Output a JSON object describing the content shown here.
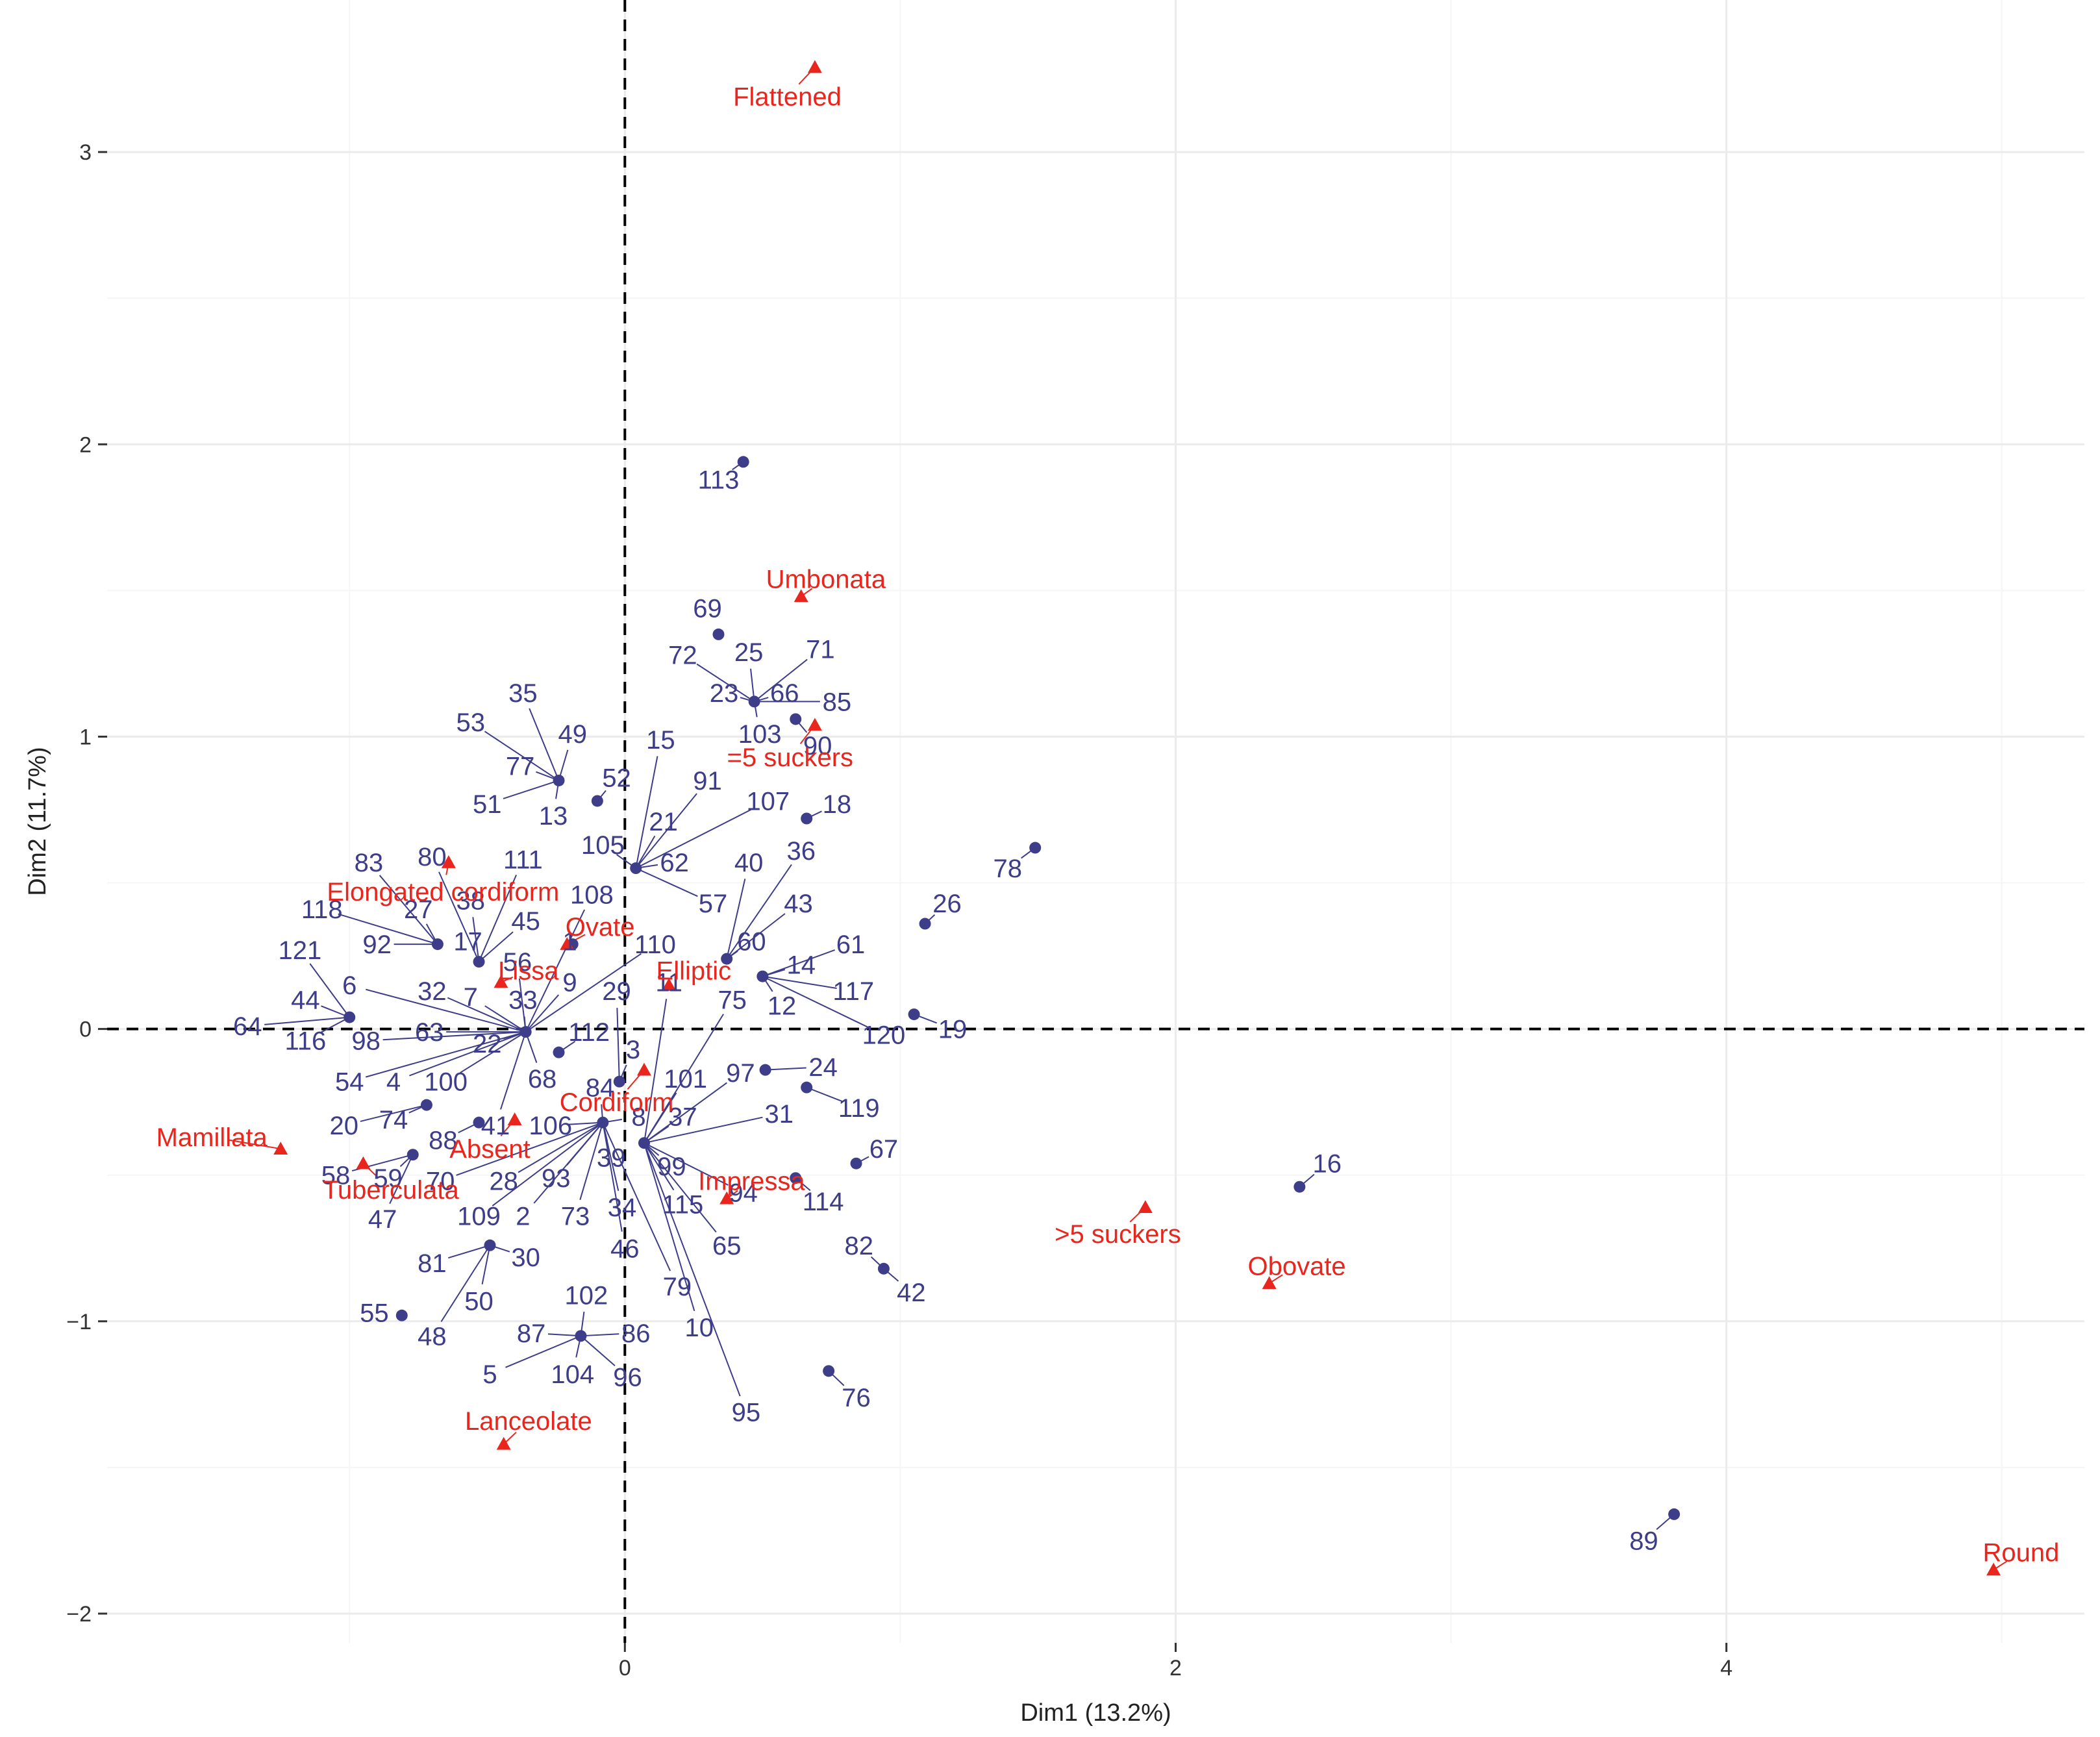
{
  "chart_data": {
    "type": "scatter",
    "title": "",
    "xlabel": "Dim1 (13.2%)",
    "ylabel": "Dim2 (11.7%)",
    "xlim": [
      -1.88,
      5.3
    ],
    "ylim": [
      -2.1,
      3.52
    ],
    "x_ticks": [
      {
        "v": 0,
        "label": "0"
      },
      {
        "v": 2,
        "label": "2"
      },
      {
        "v": 4,
        "label": "4"
      }
    ],
    "y_ticks": [
      {
        "v": -2,
        "label": "−2"
      },
      {
        "v": -1,
        "label": "−1"
      },
      {
        "v": 0,
        "label": "0"
      },
      {
        "v": 1,
        "label": "1"
      },
      {
        "v": 2,
        "label": "2"
      },
      {
        "v": 3,
        "label": "3"
      }
    ],
    "minor_x": [
      -1,
      1,
      3,
      5
    ],
    "minor_y": [
      -1.5,
      -0.5,
      0.5,
      1.5,
      2.5
    ],
    "grid": true,
    "colors": {
      "individuals": "#3d3d8a",
      "variables": "#e8261e",
      "grid_major": "#ebebeb",
      "grid_minor": "#f5f5f5",
      "connector": "#3d3d8a"
    },
    "individuals": [
      {
        "id": "1",
        "x": -0.19,
        "y": 0.29,
        "lx": -0.2,
        "ly": 0.3
      },
      {
        "id": "2",
        "x": -0.08,
        "y": -0.32,
        "lx": -0.37,
        "ly": -0.64
      },
      {
        "id": "3",
        "x": -0.02,
        "y": -0.18,
        "lx": 0.03,
        "ly": -0.07
      },
      {
        "id": "4",
        "x": -0.36,
        "y": -0.01,
        "lx": -0.84,
        "ly": -0.18
      },
      {
        "id": "5",
        "x": -0.16,
        "y": -1.05,
        "lx": -0.49,
        "ly": -1.18
      },
      {
        "id": "6",
        "x": -0.36,
        "y": -0.01,
        "lx": -1.0,
        "ly": 0.15
      },
      {
        "id": "7",
        "x": -0.36,
        "y": -0.01,
        "lx": -0.56,
        "ly": 0.11
      },
      {
        "id": "8",
        "x": -0.08,
        "y": -0.32,
        "lx": 0.05,
        "ly": -0.3
      },
      {
        "id": "9",
        "x": -0.36,
        "y": -0.01,
        "lx": -0.2,
        "ly": 0.16
      },
      {
        "id": "10",
        "x": 0.07,
        "y": -0.39,
        "lx": 0.27,
        "ly": -1.02
      },
      {
        "id": "11",
        "x": 0.07,
        "y": -0.39,
        "lx": 0.16,
        "ly": 0.16
      },
      {
        "id": "12",
        "x": 0.5,
        "y": 0.18,
        "lx": 0.57,
        "ly": 0.08
      },
      {
        "id": "13",
        "x": -0.24,
        "y": 0.85,
        "lx": -0.26,
        "ly": 0.73
      },
      {
        "id": "14",
        "x": 0.5,
        "y": 0.18,
        "lx": 0.64,
        "ly": 0.22
      },
      {
        "id": "15",
        "x": 0.04,
        "y": 0.55,
        "lx": 0.13,
        "ly": 0.99
      },
      {
        "id": "16",
        "x": 2.45,
        "y": -0.54,
        "lx": 2.55,
        "ly": -0.46
      },
      {
        "id": "17",
        "x": -0.53,
        "y": 0.23,
        "lx": -0.57,
        "ly": 0.3
      },
      {
        "id": "18",
        "x": 0.66,
        "y": 0.72,
        "lx": 0.77,
        "ly": 0.77
      },
      {
        "id": "19",
        "x": 1.05,
        "y": 0.05,
        "lx": 1.19,
        "ly": 0.0
      },
      {
        "id": "20",
        "x": -0.72,
        "y": -0.26,
        "lx": -1.02,
        "ly": -0.33
      },
      {
        "id": "21",
        "x": 0.04,
        "y": 0.55,
        "lx": 0.14,
        "ly": 0.71
      },
      {
        "id": "22",
        "x": -0.36,
        "y": -0.01,
        "lx": -0.5,
        "ly": -0.05
      },
      {
        "id": "23",
        "x": 0.47,
        "y": 1.12,
        "lx": 0.36,
        "ly": 1.15
      },
      {
        "id": "24",
        "x": 0.51,
        "y": -0.14,
        "lx": 0.72,
        "ly": -0.13
      },
      {
        "id": "25",
        "x": 0.47,
        "y": 1.12,
        "lx": 0.45,
        "ly": 1.29
      },
      {
        "id": "26",
        "x": 1.09,
        "y": 0.36,
        "lx": 1.17,
        "ly": 0.43
      },
      {
        "id": "27",
        "x": -0.68,
        "y": 0.29,
        "lx": -0.75,
        "ly": 0.41
      },
      {
        "id": "28",
        "x": -0.08,
        "y": -0.32,
        "lx": -0.44,
        "ly": -0.52
      },
      {
        "id": "29",
        "x": -0.02,
        "y": -0.18,
        "lx": -0.03,
        "ly": 0.13
      },
      {
        "id": "30",
        "x": -0.49,
        "y": -0.74,
        "lx": -0.36,
        "ly": -0.78
      },
      {
        "id": "31",
        "x": 0.07,
        "y": -0.39,
        "lx": 0.56,
        "ly": -0.29
      },
      {
        "id": "32",
        "x": -0.36,
        "y": -0.01,
        "lx": -0.7,
        "ly": 0.13
      },
      {
        "id": "33",
        "x": -0.36,
        "y": -0.01,
        "lx": -0.37,
        "ly": 0.1
      },
      {
        "id": "34",
        "x": -0.08,
        "y": -0.32,
        "lx": -0.01,
        "ly": -0.61
      },
      {
        "id": "35",
        "x": -0.24,
        "y": 0.85,
        "lx": -0.37,
        "ly": 1.15
      },
      {
        "id": "36",
        "x": 0.37,
        "y": 0.24,
        "lx": 0.64,
        "ly": 0.61
      },
      {
        "id": "37",
        "x": 0.07,
        "y": -0.39,
        "lx": 0.21,
        "ly": -0.3
      },
      {
        "id": "38",
        "x": -0.53,
        "y": 0.23,
        "lx": -0.56,
        "ly": 0.44
      },
      {
        "id": "39",
        "x": -0.08,
        "y": -0.32,
        "lx": -0.05,
        "ly": -0.44
      },
      {
        "id": "40",
        "x": 0.37,
        "y": 0.24,
        "lx": 0.45,
        "ly": 0.57
      },
      {
        "id": "41",
        "x": -0.36,
        "y": -0.01,
        "lx": -0.47,
        "ly": -0.33
      },
      {
        "id": "42",
        "x": 0.94,
        "y": -0.82,
        "lx": 1.04,
        "ly": -0.9
      },
      {
        "id": "43",
        "x": 0.37,
        "y": 0.24,
        "lx": 0.63,
        "ly": 0.43
      },
      {
        "id": "44",
        "x": -1.0,
        "y": 0.04,
        "lx": -1.16,
        "ly": 0.1
      },
      {
        "id": "45",
        "x": -0.53,
        "y": 0.23,
        "lx": -0.36,
        "ly": 0.37
      },
      {
        "id": "46",
        "x": -0.08,
        "y": -0.32,
        "lx": 0.0,
        "ly": -0.75
      },
      {
        "id": "47",
        "x": -0.77,
        "y": -0.43,
        "lx": -0.88,
        "ly": -0.65
      },
      {
        "id": "48",
        "x": -0.49,
        "y": -0.74,
        "lx": -0.7,
        "ly": -1.05
      },
      {
        "id": "49",
        "x": -0.24,
        "y": 0.85,
        "lx": -0.19,
        "ly": 1.01
      },
      {
        "id": "50",
        "x": -0.49,
        "y": -0.74,
        "lx": -0.53,
        "ly": -0.93
      },
      {
        "id": "51",
        "x": -0.24,
        "y": 0.85,
        "lx": -0.5,
        "ly": 0.77
      },
      {
        "id": "52",
        "x": -0.1,
        "y": 0.78,
        "lx": -0.03,
        "ly": 0.86
      },
      {
        "id": "53",
        "x": -0.24,
        "y": 0.85,
        "lx": -0.56,
        "ly": 1.05
      },
      {
        "id": "54",
        "x": -0.36,
        "y": -0.01,
        "lx": -1.0,
        "ly": -0.18
      },
      {
        "id": "55",
        "x": -0.81,
        "y": -0.98,
        "lx": -0.91,
        "ly": -0.97
      },
      {
        "id": "56",
        "x": -0.36,
        "y": -0.01,
        "lx": -0.39,
        "ly": 0.23
      },
      {
        "id": "57",
        "x": 0.04,
        "y": 0.55,
        "lx": 0.32,
        "ly": 0.43
      },
      {
        "id": "58",
        "x": -0.77,
        "y": -0.43,
        "lx": -1.05,
        "ly": -0.5
      },
      {
        "id": "59",
        "x": -0.77,
        "y": -0.43,
        "lx": -0.86,
        "ly": -0.51
      },
      {
        "id": "60",
        "x": 0.37,
        "y": 0.24,
        "lx": 0.46,
        "ly": 0.3
      },
      {
        "id": "61",
        "x": 0.5,
        "y": 0.18,
        "lx": 0.82,
        "ly": 0.29
      },
      {
        "id": "62",
        "x": 0.04,
        "y": 0.55,
        "lx": 0.18,
        "ly": 0.57
      },
      {
        "id": "63",
        "x": -0.36,
        "y": -0.01,
        "lx": -0.71,
        "ly": -0.01
      },
      {
        "id": "64",
        "x": -1.0,
        "y": 0.04,
        "lx": -1.37,
        "ly": 0.01
      },
      {
        "id": "65",
        "x": 0.07,
        "y": -0.39,
        "lx": 0.37,
        "ly": -0.74
      },
      {
        "id": "66",
        "x": 0.47,
        "y": 1.12,
        "lx": 0.58,
        "ly": 1.15
      },
      {
        "id": "67",
        "x": 0.84,
        "y": -0.46,
        "lx": 0.94,
        "ly": -0.41
      },
      {
        "id": "68",
        "x": -0.36,
        "y": -0.01,
        "lx": -0.3,
        "ly": -0.17
      },
      {
        "id": "69",
        "x": 0.34,
        "y": 1.35,
        "lx": 0.3,
        "ly": 1.44
      },
      {
        "id": "70",
        "x": -0.08,
        "y": -0.32,
        "lx": -0.67,
        "ly": -0.52
      },
      {
        "id": "71",
        "x": 0.47,
        "y": 1.12,
        "lx": 0.71,
        "ly": 1.3
      },
      {
        "id": "72",
        "x": 0.47,
        "y": 1.12,
        "lx": 0.21,
        "ly": 1.28
      },
      {
        "id": "73",
        "x": -0.08,
        "y": -0.32,
        "lx": -0.18,
        "ly": -0.64
      },
      {
        "id": "74",
        "x": -0.72,
        "y": -0.26,
        "lx": -0.84,
        "ly": -0.31
      },
      {
        "id": "75",
        "x": 0.07,
        "y": -0.39,
        "lx": 0.39,
        "ly": 0.1
      },
      {
        "id": "76",
        "x": 0.74,
        "y": -1.17,
        "lx": 0.84,
        "ly": -1.26
      },
      {
        "id": "77",
        "x": -0.24,
        "y": 0.85,
        "lx": -0.38,
        "ly": 0.9
      },
      {
        "id": "78",
        "x": 1.49,
        "y": 0.62,
        "lx": 1.39,
        "ly": 0.55
      },
      {
        "id": "79",
        "x": -0.08,
        "y": -0.32,
        "lx": 0.19,
        "ly": -0.88
      },
      {
        "id": "80",
        "x": -0.53,
        "y": 0.23,
        "lx": -0.7,
        "ly": 0.59
      },
      {
        "id": "81",
        "x": -0.49,
        "y": -0.74,
        "lx": -0.7,
        "ly": -0.8
      },
      {
        "id": "82",
        "x": 0.94,
        "y": -0.82,
        "lx": 0.85,
        "ly": -0.74
      },
      {
        "id": "83",
        "x": -0.68,
        "y": 0.29,
        "lx": -0.93,
        "ly": 0.57
      },
      {
        "id": "84",
        "x": -0.08,
        "y": -0.32,
        "lx": -0.09,
        "ly": -0.2
      },
      {
        "id": "85",
        "x": 0.47,
        "y": 1.12,
        "lx": 0.77,
        "ly": 1.12
      },
      {
        "id": "86",
        "x": -0.16,
        "y": -1.05,
        "lx": 0.04,
        "ly": -1.04
      },
      {
        "id": "87",
        "x": -0.16,
        "y": -1.05,
        "lx": -0.34,
        "ly": -1.04
      },
      {
        "id": "88",
        "x": -0.53,
        "y": -0.32,
        "lx": -0.66,
        "ly": -0.38
      },
      {
        "id": "89",
        "x": 3.81,
        "y": -1.66,
        "lx": 3.7,
        "ly": -1.75
      },
      {
        "id": "90",
        "x": 0.62,
        "y": 1.06,
        "lx": 0.7,
        "ly": 0.97
      },
      {
        "id": "91",
        "x": 0.04,
        "y": 0.55,
        "lx": 0.3,
        "ly": 0.85
      },
      {
        "id": "92",
        "x": -0.68,
        "y": 0.29,
        "lx": -0.9,
        "ly": 0.29
      },
      {
        "id": "93",
        "x": -0.08,
        "y": -0.32,
        "lx": -0.25,
        "ly": -0.51
      },
      {
        "id": "94",
        "x": 0.07,
        "y": -0.39,
        "lx": 0.43,
        "ly": -0.56
      },
      {
        "id": "95",
        "x": 0.07,
        "y": -0.39,
        "lx": 0.44,
        "ly": -1.31
      },
      {
        "id": "96",
        "x": -0.16,
        "y": -1.05,
        "lx": 0.01,
        "ly": -1.19
      },
      {
        "id": "97",
        "x": 0.07,
        "y": -0.39,
        "lx": 0.42,
        "ly": -0.15
      },
      {
        "id": "98",
        "x": -0.36,
        "y": -0.01,
        "lx": -0.94,
        "ly": -0.04
      },
      {
        "id": "99",
        "x": 0.07,
        "y": -0.39,
        "lx": 0.17,
        "ly": -0.47
      },
      {
        "id": "100",
        "x": -0.36,
        "y": -0.01,
        "lx": -0.65,
        "ly": -0.18
      },
      {
        "id": "101",
        "x": 0.07,
        "y": -0.39,
        "lx": 0.22,
        "ly": -0.17
      },
      {
        "id": "102",
        "x": -0.16,
        "y": -1.05,
        "lx": -0.14,
        "ly": -0.91
      },
      {
        "id": "103",
        "x": 0.47,
        "y": 1.12,
        "lx": 0.49,
        "ly": 1.01
      },
      {
        "id": "104",
        "x": -0.16,
        "y": -1.05,
        "lx": -0.19,
        "ly": -1.18
      },
      {
        "id": "105",
        "x": 0.04,
        "y": 0.55,
        "lx": -0.08,
        "ly": 0.63
      },
      {
        "id": "106",
        "x": -0.08,
        "y": -0.32,
        "lx": -0.27,
        "ly": -0.33
      },
      {
        "id": "107",
        "x": 0.04,
        "y": 0.55,
        "lx": 0.52,
        "ly": 0.78
      },
      {
        "id": "108",
        "x": -0.36,
        "y": -0.01,
        "lx": -0.12,
        "ly": 0.46
      },
      {
        "id": "109",
        "x": -0.08,
        "y": -0.32,
        "lx": -0.53,
        "ly": -0.64
      },
      {
        "id": "110",
        "x": -0.36,
        "y": -0.01,
        "lx": 0.11,
        "ly": 0.29
      },
      {
        "id": "111",
        "x": -0.53,
        "y": 0.23,
        "lx": -0.37,
        "ly": 0.58
      },
      {
        "id": "112",
        "x": -0.24,
        "y": -0.08,
        "lx": -0.13,
        "ly": -0.01
      },
      {
        "id": "113",
        "x": 0.43,
        "y": 1.94,
        "lx": 0.34,
        "ly": 1.88
      },
      {
        "id": "114",
        "x": 0.62,
        "y": -0.51,
        "lx": 0.72,
        "ly": -0.59
      },
      {
        "id": "115",
        "x": 0.07,
        "y": -0.39,
        "lx": 0.21,
        "ly": -0.6
      },
      {
        "id": "116",
        "x": -1.0,
        "y": 0.04,
        "lx": -1.16,
        "ly": -0.04
      },
      {
        "id": "117",
        "x": 0.5,
        "y": 0.18,
        "lx": 0.83,
        "ly": 0.13
      },
      {
        "id": "118",
        "x": -0.68,
        "y": 0.29,
        "lx": -1.1,
        "ly": 0.41
      },
      {
        "id": "119",
        "x": 0.66,
        "y": -0.2,
        "lx": 0.85,
        "ly": -0.27
      },
      {
        "id": "120",
        "x": 0.5,
        "y": 0.18,
        "lx": 0.94,
        "ly": -0.02
      },
      {
        "id": "121",
        "x": -1.0,
        "y": 0.04,
        "lx": -1.18,
        "ly": 0.27
      }
    ],
    "variables": [
      {
        "label": "Flattened",
        "x": 0.69,
        "y": 3.29,
        "lx": 0.59,
        "ly": 3.19
      },
      {
        "label": "Umbonata",
        "x": 0.64,
        "y": 1.48,
        "lx": 0.73,
        "ly": 1.54
      },
      {
        "label": "=5 suckers",
        "x": 0.69,
        "y": 1.04,
        "lx": 0.6,
        "ly": 0.93
      },
      {
        "label": "Elongated cordiform",
        "x": -0.64,
        "y": 0.57,
        "lx": -0.66,
        "ly": 0.47
      },
      {
        "label": "Ovate",
        "x": -0.21,
        "y": 0.29,
        "lx": -0.09,
        "ly": 0.35
      },
      {
        "label": "Lissa",
        "x": -0.45,
        "y": 0.16,
        "lx": -0.35,
        "ly": 0.2
      },
      {
        "label": "Elliptic",
        "x": 0.16,
        "y": 0.15,
        "lx": 0.25,
        "ly": 0.2
      },
      {
        "label": "Cordiform",
        "x": 0.07,
        "y": -0.14,
        "lx": -0.03,
        "ly": -0.25
      },
      {
        "label": "Absent",
        "x": -0.4,
        "y": -0.31,
        "lx": -0.49,
        "ly": -0.41
      },
      {
        "label": "Mamillata",
        "x": -1.25,
        "y": -0.41,
        "lx": -1.5,
        "ly": -0.37
      },
      {
        "label": "Tuberculata",
        "x": -0.95,
        "y": -0.46,
        "lx": -0.85,
        "ly": -0.55
      },
      {
        "label": "Impressa",
        "x": 0.37,
        "y": -0.58,
        "lx": 0.46,
        "ly": -0.52
      },
      {
        "label": ">5 suckers",
        "x": 1.89,
        "y": -0.61,
        "lx": 1.79,
        "ly": -0.7
      },
      {
        "label": "Obovate",
        "x": 2.34,
        "y": -0.87,
        "lx": 2.44,
        "ly": -0.81
      },
      {
        "label": "Lanceolate",
        "x": -0.44,
        "y": -1.42,
        "lx": -0.35,
        "ly": -1.34
      },
      {
        "label": "Round",
        "x": 4.97,
        "y": -1.85,
        "lx": 5.07,
        "ly": -1.79
      }
    ]
  }
}
